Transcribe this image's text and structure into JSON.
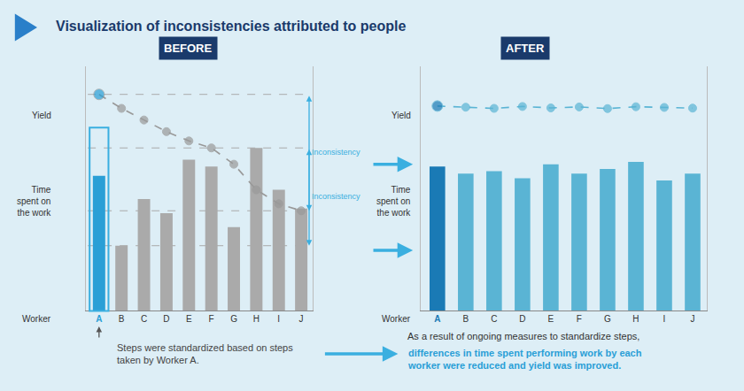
{
  "chart_data": [
    {
      "type": "bar",
      "title": "Visualization of inconsistencies attributed to people",
      "subtitle": "BEFORE",
      "categories": [
        "A",
        "B",
        "C",
        "D",
        "E",
        "F",
        "G",
        "H",
        "I",
        "J"
      ],
      "xlabel": "Worker",
      "ylabel": "Time\nspent on\nthe work",
      "y2label": "Yield",
      "series": [
        {
          "type": "bar",
          "colors": [
            "#2a9fd6",
            "#aaaaaa",
            "#aaaaaa",
            "#aaaaaa",
            "#aaaaaa",
            "#aaaaaa",
            "#aaaaaa",
            "#aaaaaa",
            "#aaaaaa",
            "#aaaaaa"
          ],
          "values": [
            0.58,
            0.28,
            0.48,
            0.42,
            0.65,
            0.62,
            0.36,
            0.7,
            0.52,
            0.44
          ]
        },
        {
          "type": "line",
          "axis": "y2",
          "color": "#999999",
          "colors": [
            "#2a9fd6",
            "#999999",
            "#999999",
            "#999999",
            "#999999",
            "#999999",
            "#999999",
            "#999999",
            "#999999",
            "#999999"
          ],
          "line_style": "dashed",
          "marker": "circle",
          "values": [
            0.93,
            0.87,
            0.82,
            0.77,
            0.73,
            0.7,
            0.63,
            0.52,
            0.46,
            0.43
          ]
        }
      ],
      "ylim": [
        0,
        1.05
      ],
      "yticks": [],
      "y2lim": [
        0,
        1.05
      ],
      "y2ticks": [],
      "tick_labels": "x",
      "grid": false,
      "annotations": [
        {
          "text": "Inconsistency",
          "axis": "y2",
          "from": 0.93,
          "to": 0.43,
          "color": "#3aafe0"
        },
        {
          "text": "Inconsistency",
          "axis": "y",
          "from": 0.7,
          "to": 0.28,
          "color": "#3aafe0"
        },
        {
          "text": "Steps were standardized based on steps\ntaken by Worker A.",
          "category": "A",
          "color": "#444444"
        }
      ],
      "highlight": {
        "category": "A",
        "color": "#3aafe0"
      },
      "title_color": "#1a3a6b",
      "title_marker_color": "#2a7fc9",
      "subtitle_color": "#ffffff",
      "subtitle_background": "#1a3a6b",
      "arrow_color": "#3aafe0",
      "background": "#ddeef6"
    },
    {
      "type": "bar",
      "subtitle": "AFTER",
      "categories": [
        "A",
        "B",
        "C",
        "D",
        "E",
        "F",
        "G",
        "H",
        "I",
        "J"
      ],
      "xlabel": "Worker",
      "ylabel": "Time\nspent on\nthe work",
      "y2label": "Yield",
      "series": [
        {
          "type": "bar",
          "colors": [
            "#1a7ab5",
            "#5ab4d4",
            "#5ab4d4",
            "#5ab4d4",
            "#5ab4d4",
            "#5ab4d4",
            "#5ab4d4",
            "#5ab4d4",
            "#5ab4d4",
            "#5ab4d4"
          ],
          "values": [
            0.62,
            0.59,
            0.6,
            0.57,
            0.63,
            0.59,
            0.61,
            0.64,
            0.56,
            0.59
          ]
        },
        {
          "type": "line",
          "axis": "y2",
          "color": "#5ab4d4",
          "colors": [
            "#1a7ab5",
            "#5ab4d4",
            "#5ab4d4",
            "#5ab4d4",
            "#5ab4d4",
            "#5ab4d4",
            "#5ab4d4",
            "#5ab4d4",
            "#5ab4d4",
            "#5ab4d4"
          ],
          "line_style": "dashed",
          "marker": "circle",
          "values": [
            0.88,
            0.875,
            0.87,
            0.878,
            0.872,
            0.876,
            0.869,
            0.877,
            0.874,
            0.871
          ]
        }
      ],
      "ylim": [
        0,
        1.05
      ],
      "yticks": [],
      "y2lim": [
        0,
        1.05
      ],
      "y2ticks": [],
      "tick_labels": "x",
      "grid": false,
      "annotations": [
        {
          "text": "As a result of ongoing measures to standardize steps,",
          "color": "#333333"
        },
        {
          "text": "differences in time spent performing work by each\nworker were reduced and yield was improved.",
          "color": "#2a9fd6"
        }
      ],
      "subtitle_color": "#ffffff",
      "subtitle_background": "#1a3a6b"
    }
  ]
}
